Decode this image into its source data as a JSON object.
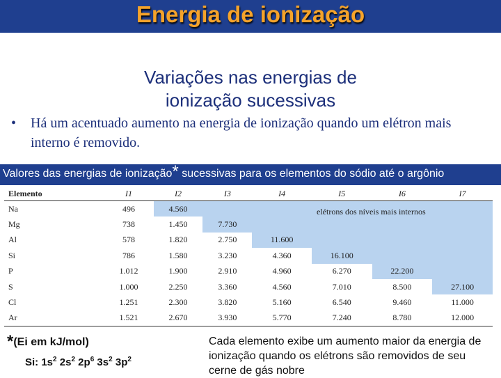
{
  "header": {
    "title": "Energia de ionização"
  },
  "subtitle": "Variações nas energias de ionização sucessivas",
  "bullet": {
    "marker": "•",
    "text": "Há um acentuado aumento na energia de ionização quando um elétron mais interno é removido."
  },
  "caption": {
    "before": "Valores das energias de ionização",
    "star": "*",
    "after": " sucessivas para os elementos do sódio até o argônio"
  },
  "table": {
    "columns": [
      "Elemento",
      "I1",
      "I2",
      "I3",
      "I4",
      "I5",
      "I6",
      "I7"
    ],
    "inner_label": "elétrons dos níveis mais internos",
    "highlight_color": "#b9d3ef",
    "rows": [
      {
        "el": "Na",
        "v": [
          "496",
          "4.560",
          "",
          "",
          "",
          "",
          ""
        ],
        "core_from": 1
      },
      {
        "el": "Mg",
        "v": [
          "738",
          "1.450",
          "7.730",
          "",
          "",
          "",
          ""
        ],
        "core_from": 2
      },
      {
        "el": "Al",
        "v": [
          "578",
          "1.820",
          "2.750",
          "11.600",
          "",
          "",
          ""
        ],
        "core_from": 3
      },
      {
        "el": "Si",
        "v": [
          "786",
          "1.580",
          "3.230",
          "4.360",
          "16.100",
          "",
          ""
        ],
        "core_from": 4
      },
      {
        "el": "P",
        "v": [
          "1.012",
          "1.900",
          "2.910",
          "4.960",
          "6.270",
          "22.200",
          ""
        ],
        "core_from": 5
      },
      {
        "el": "S",
        "v": [
          "1.000",
          "2.250",
          "3.360",
          "4.560",
          "7.010",
          "8.500",
          "27.100"
        ],
        "core_from": 6
      },
      {
        "el": "Cl",
        "v": [
          "1.251",
          "2.300",
          "3.820",
          "5.160",
          "6.540",
          "9.460",
          "11.000"
        ],
        "core_from": 7
      },
      {
        "el": "Ar",
        "v": [
          "1.521",
          "2.670",
          "3.930",
          "5.770",
          "7.240",
          "8.780",
          "12.000"
        ],
        "core_from": 7
      }
    ]
  },
  "note": {
    "star": "*",
    "text": "(Ei em kJ/mol)"
  },
  "configuration": {
    "prefix": "Si: ",
    "parts": [
      {
        "base": "1s",
        "sup": "2"
      },
      {
        "base": " 2s",
        "sup": "2"
      },
      {
        "base": " 2p",
        "sup": "6"
      },
      {
        "base": " 3s",
        "sup": "2"
      },
      {
        "base": " 3p",
        "sup": "2"
      }
    ]
  },
  "right_note": "Cada elemento exibe um aumento maior da energia de ionização quando os elétrons são removidos de seu cerne de gás nobre"
}
